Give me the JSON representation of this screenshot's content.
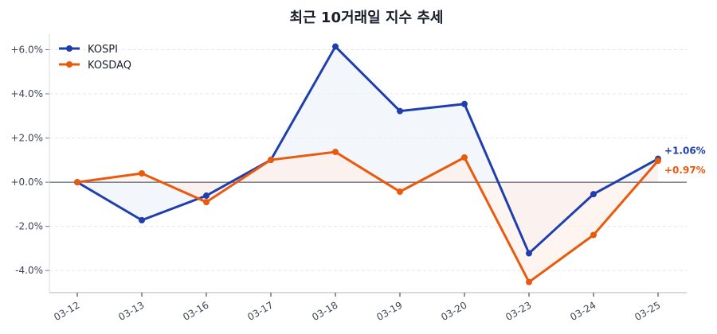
{
  "chart_data": {
    "type": "line",
    "title": "최근 10거래일 지수 추세",
    "xlabel": "",
    "ylabel": "",
    "categories": [
      "03-12",
      "03-13",
      "03-16",
      "03-17",
      "03-18",
      "03-19",
      "03-20",
      "03-23",
      "03-24",
      "03-25"
    ],
    "ylim": [
      -5.0,
      6.7
    ],
    "yticks": [
      -4,
      -2,
      0,
      2,
      4,
      6
    ],
    "ytick_labels": [
      "-4.0%",
      "-2.0%",
      "+0.0%",
      "+2.0%",
      "+4.0%",
      "+6.0%"
    ],
    "grid": true,
    "legend": "top-left",
    "series": [
      {
        "name": "KOSPI",
        "color": "#1f3fae",
        "fill": "#eef2fa",
        "values": [
          0.0,
          -1.72,
          -0.61,
          1.01,
          6.14,
          3.22,
          3.54,
          -3.22,
          -0.54,
          1.06
        ],
        "end_label": "+1.06%"
      },
      {
        "name": "KOSDAQ",
        "color": "#ea5a0c",
        "fill": "#fdf1ea",
        "values": [
          0.0,
          0.4,
          -0.9,
          1.01,
          1.37,
          -0.43,
          1.12,
          -4.52,
          -2.39,
          0.97
        ],
        "end_label": "+0.97%"
      }
    ]
  }
}
